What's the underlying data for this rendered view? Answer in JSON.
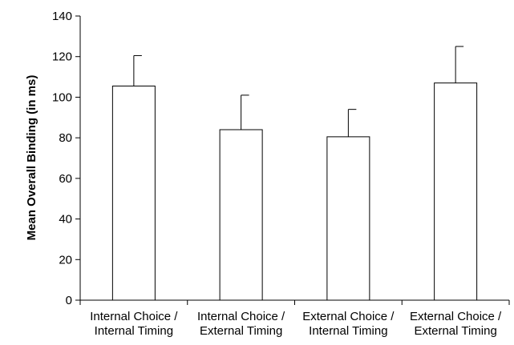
{
  "chart_data": {
    "type": "bar",
    "categories": [
      [
        "Internal Choice /",
        "Internal Timing"
      ],
      [
        "Internal Choice /",
        "External Timing"
      ],
      [
        "External Choice /",
        "Internal Timing"
      ],
      [
        "External Choice /",
        "External Timing"
      ]
    ],
    "values": [
      105.5,
      84,
      80.5,
      107
    ],
    "error_upper": [
      15,
      17,
      13.5,
      18
    ],
    "title": "",
    "xlabel": "",
    "ylabel": "Mean Overall Binding (in ms)",
    "ylim": [
      0,
      140
    ],
    "yticks": [
      0,
      20,
      40,
      60,
      80,
      100,
      120,
      140
    ],
    "grid": false,
    "legend": "none",
    "bar_fill": "#ffffff",
    "bar_stroke": "#000000"
  }
}
